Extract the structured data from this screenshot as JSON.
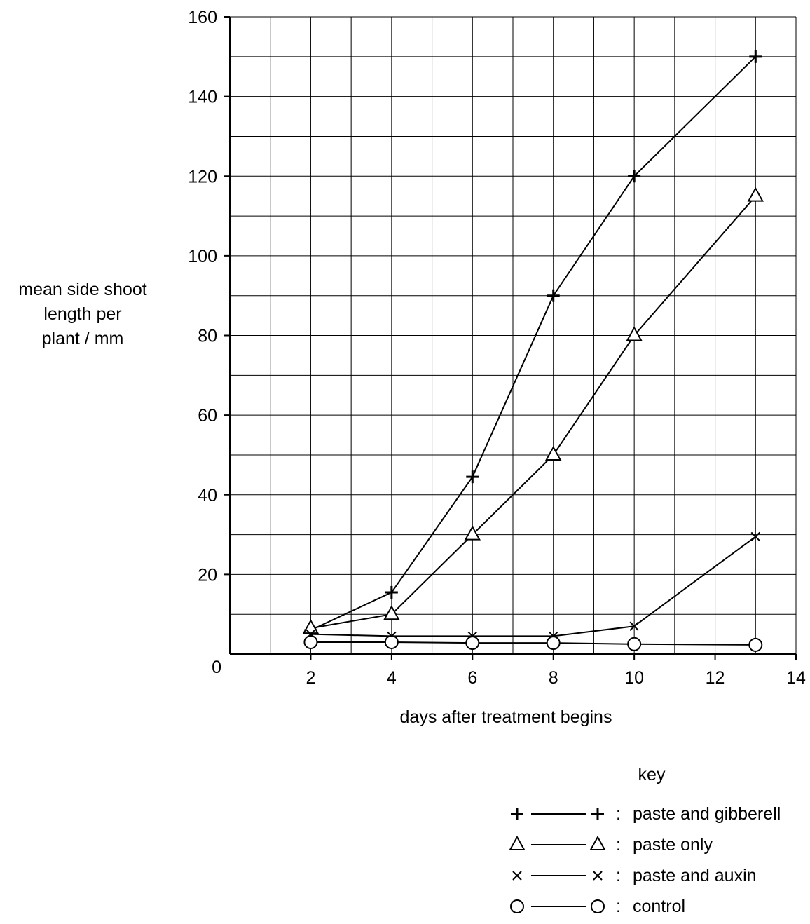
{
  "chart_data": {
    "type": "line",
    "title": "",
    "xlabel": "days after treatment begins",
    "ylabel_lines": [
      "mean side shoot",
      "length per",
      "plant / mm"
    ],
    "xlim": [
      0,
      14
    ],
    "ylim": [
      0,
      160
    ],
    "x_ticks": [
      2,
      4,
      6,
      8,
      10,
      12,
      14
    ],
    "y_ticks": [
      0,
      20,
      40,
      60,
      80,
      100,
      120,
      140,
      160
    ],
    "x_minor_step": 1,
    "y_minor_step": 10,
    "grid": true,
    "legend_title": "key",
    "legend_position": "bottom-right",
    "series": [
      {
        "name": "paste and gibberellin",
        "name_visible": "paste and gibberell",
        "marker": "plus",
        "x": [
          2,
          4,
          6,
          8,
          10,
          13
        ],
        "values": [
          6,
          15.5,
          44.5,
          90,
          120,
          150
        ]
      },
      {
        "name": "paste only",
        "marker": "triangle",
        "x": [
          2,
          4,
          6,
          8,
          10,
          13
        ],
        "values": [
          6.5,
          10,
          30,
          50,
          80,
          115
        ]
      },
      {
        "name": "paste and auxin",
        "marker": "cross",
        "x": [
          2,
          4,
          6,
          8,
          10,
          13
        ],
        "values": [
          5,
          4.5,
          4.5,
          4.5,
          7,
          29.5
        ]
      },
      {
        "name": "control",
        "marker": "circle",
        "x": [
          2,
          4,
          6,
          8,
          10,
          13
        ],
        "values": [
          3,
          3,
          2.8,
          2.8,
          2.5,
          2.3
        ]
      }
    ]
  }
}
